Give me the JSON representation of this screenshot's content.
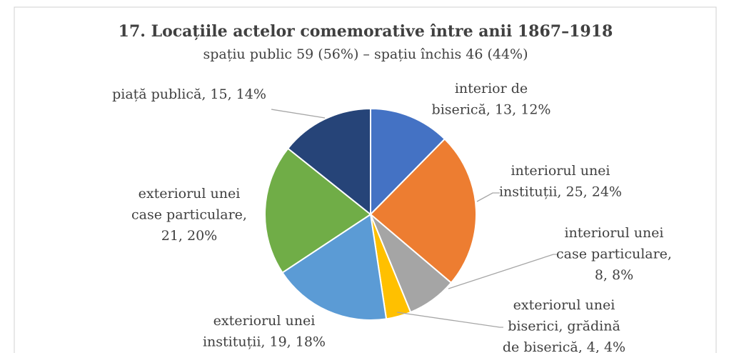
{
  "chart_data": {
    "type": "pie",
    "title": "17. Locațiile actelor comemorative între anii 1867–1918",
    "subtitle": "spațiu public 59 (56%) – spațiu închis 46 (44%)",
    "labels": [
      [
        "interior de",
        "biserică, 13, 12%"
      ],
      [
        "interiorul unei",
        "instituții, 25, 24%"
      ],
      [
        "interiorul unei",
        "case particulare,",
        "8, 8%"
      ],
      [
        "exteriorul unei",
        "biserici, grădină",
        "de biserică, 4, 4%"
      ],
      [
        "exteriorul unei",
        "instituții, 19, 18%"
      ],
      [
        "exteriorul unei",
        "case particulare,",
        "21, 20%"
      ],
      [
        "piață publică, 15, 14%"
      ]
    ],
    "values": [
      13,
      25,
      8,
      4,
      19,
      21,
      15
    ],
    "colors": [
      "#4472c4",
      "#ed7d31",
      "#a5a5a5",
      "#ffc000",
      "#5b9bd5",
      "#70ad47",
      "#264478"
    ]
  }
}
